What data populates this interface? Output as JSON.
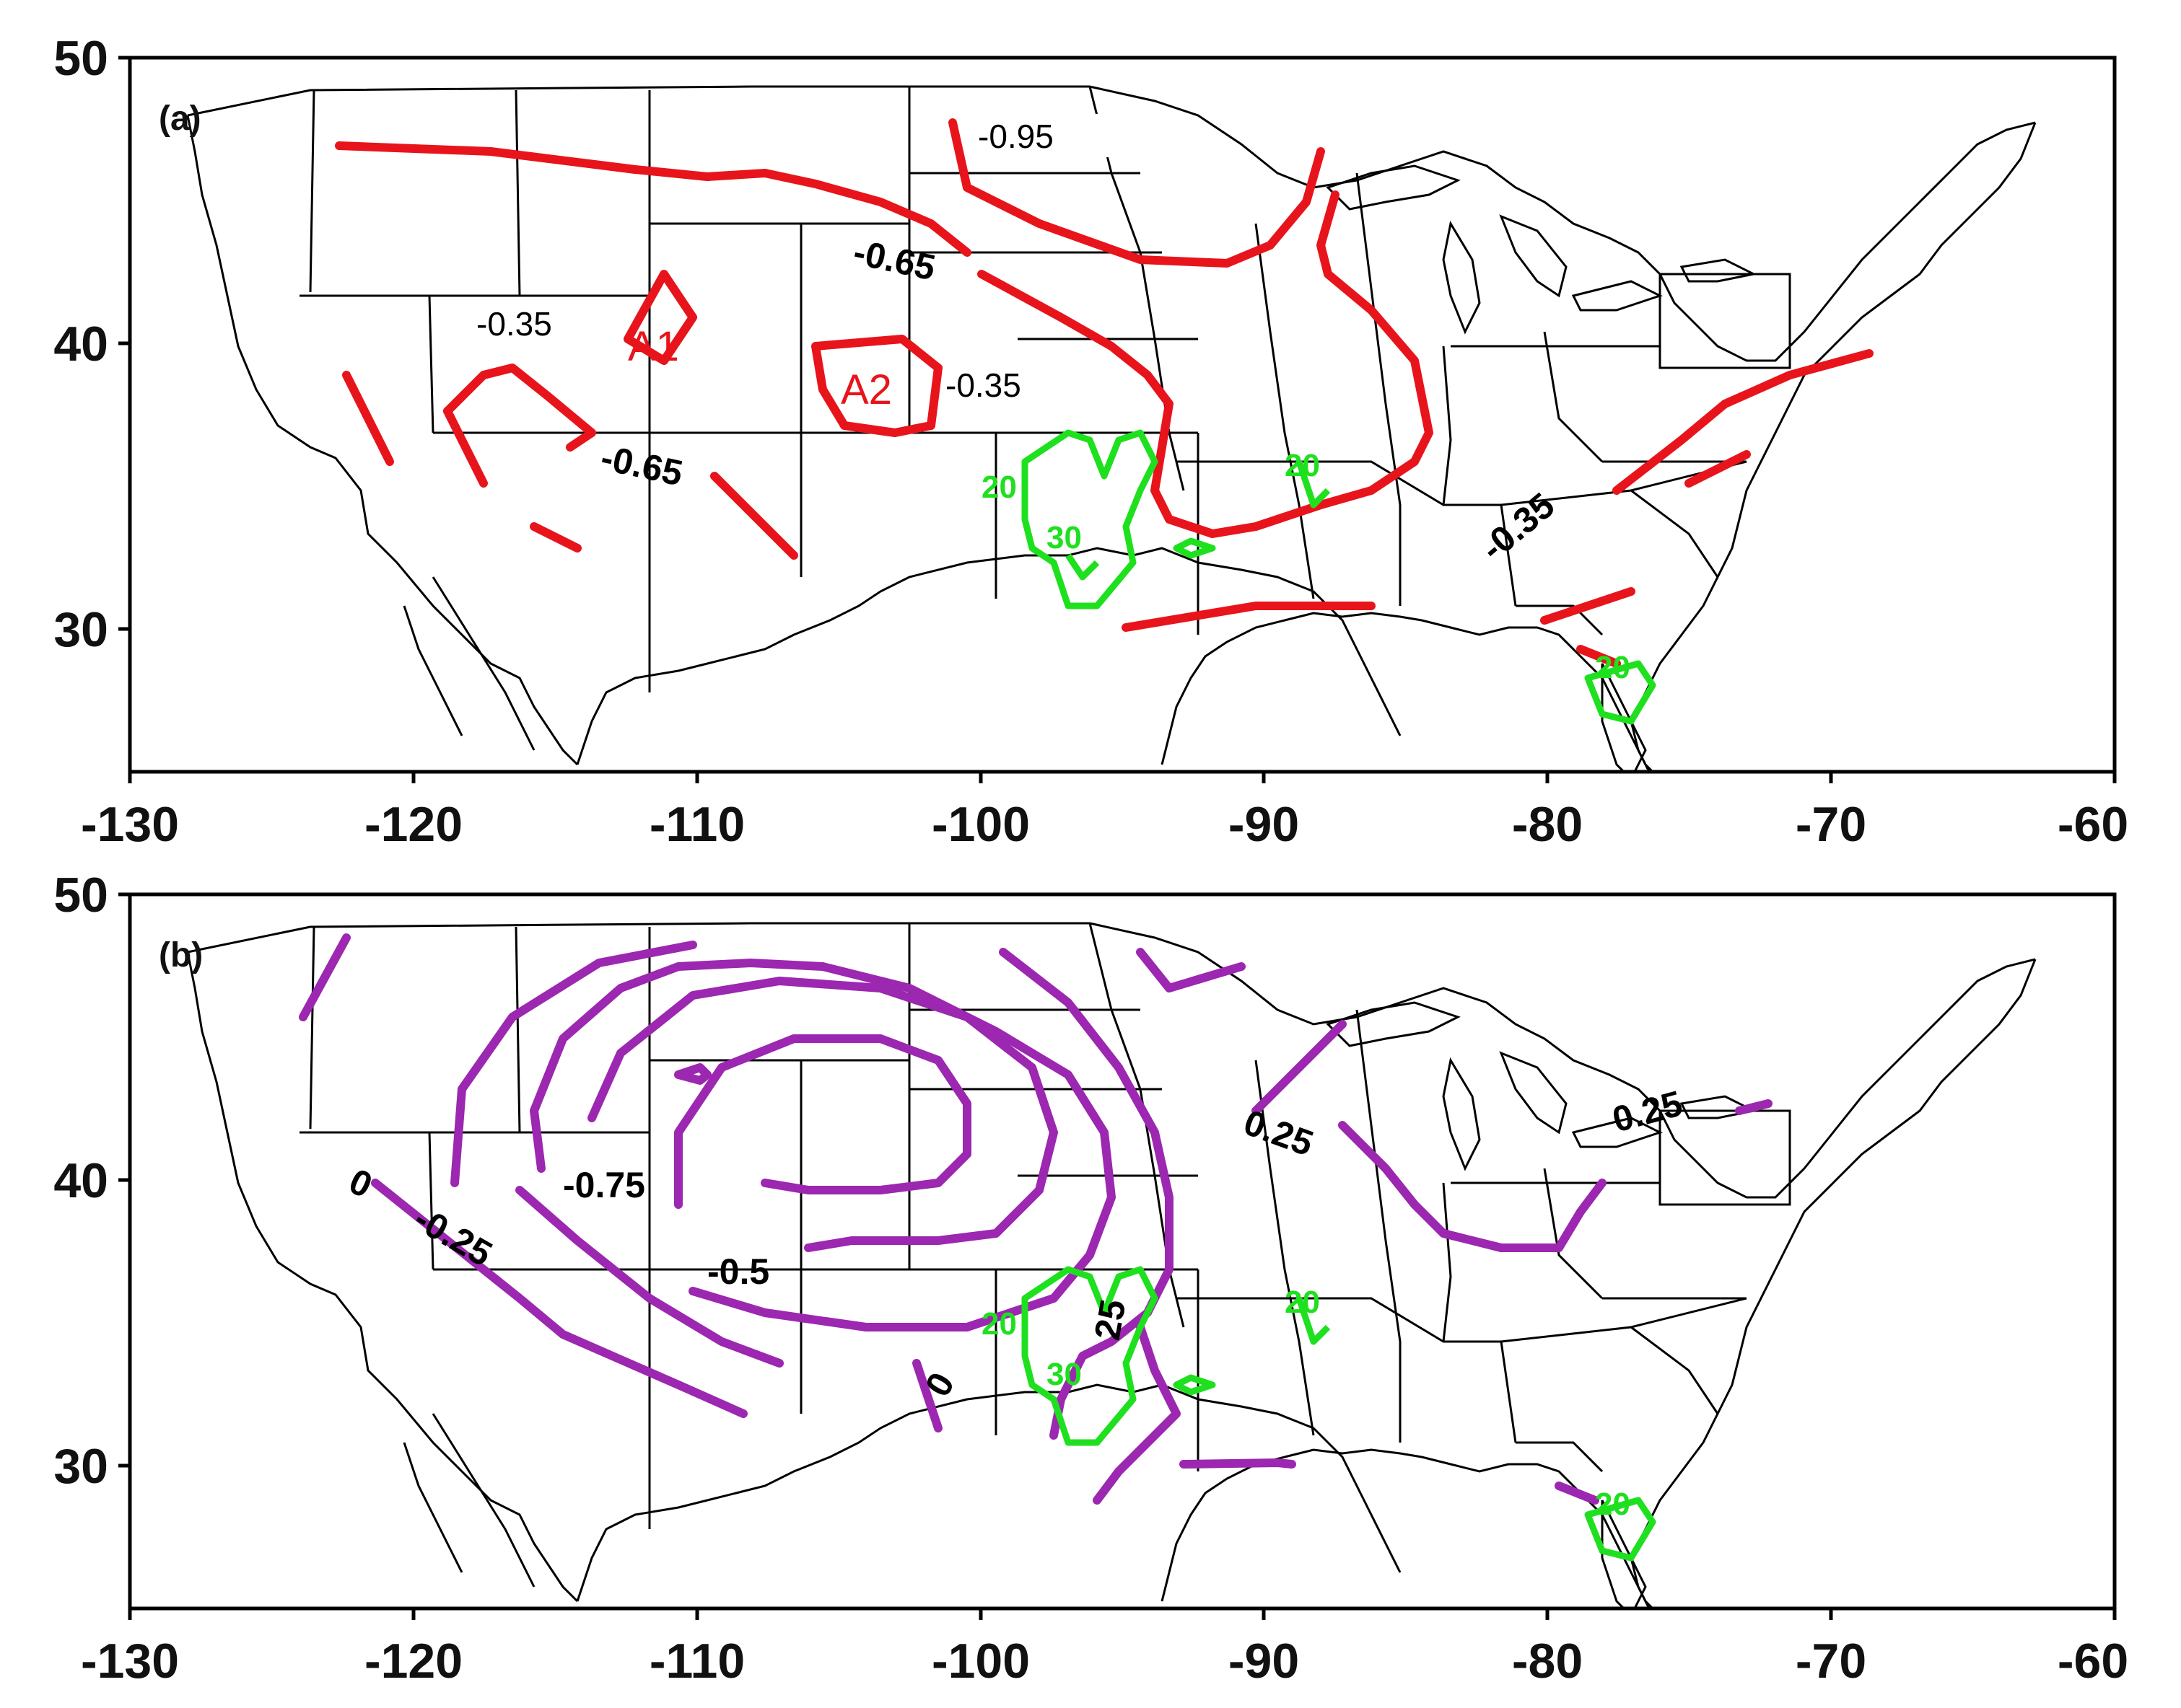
{
  "panels": [
    {
      "label": "(a)",
      "x_ticks": [
        "-130",
        "-120",
        "-110",
        "-100",
        "-90",
        "-80",
        "-70",
        "-60"
      ],
      "y_ticks": [
        "50",
        "40",
        "30"
      ],
      "contour_labels": [
        "-0.95",
        "-0.65",
        "-0.35",
        "-0.35",
        "-0.65",
        "-0.35"
      ],
      "region_labels": [
        "A1",
        "A2"
      ],
      "precip_labels": [
        "20",
        "20",
        "30",
        "20"
      ],
      "line_color": "#e8141b"
    },
    {
      "label": "(b)",
      "x_ticks": [
        "-130",
        "-120",
        "-110",
        "-100",
        "-90",
        "-80",
        "-70",
        "-60"
      ],
      "y_ticks": [
        "50",
        "40",
        "30"
      ],
      "contour_labels": [
        "0",
        "-0.25",
        "-0.75",
        "-0.5",
        "0",
        "25",
        "0.25",
        "0.25"
      ],
      "precip_labels": [
        "20",
        "20",
        "30",
        "20"
      ],
      "line_color": "#9c27b0"
    }
  ],
  "precip_color": "#1fe01f"
}
